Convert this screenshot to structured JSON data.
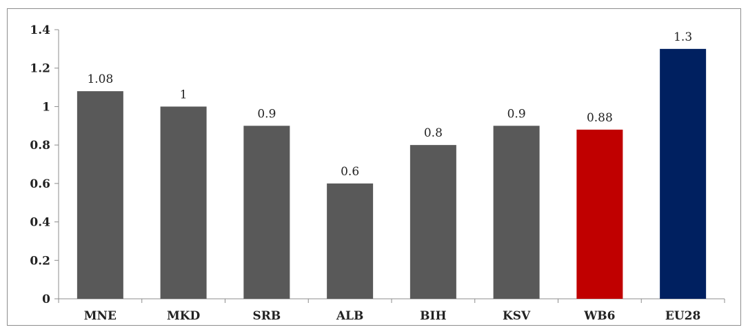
{
  "chart_data": {
    "type": "bar",
    "title": "",
    "xlabel": "",
    "ylabel": "",
    "categories": [
      "MNE",
      "MKD",
      "SRB",
      "ALB",
      "BIH",
      "KSV",
      "WB6",
      "EU28"
    ],
    "values": [
      1.08,
      1,
      0.9,
      0.6,
      0.8,
      0.9,
      0.88,
      1.3
    ],
    "value_labels": [
      "1.08",
      "1",
      "0.9",
      "0.6",
      "0.8",
      "0.9",
      "0.88",
      "1.3"
    ],
    "bar_colors": [
      "#595959",
      "#595959",
      "#595959",
      "#595959",
      "#595959",
      "#595959",
      "#c00000",
      "#002060"
    ],
    "ylim": [
      0,
      1.4
    ],
    "yticks": [
      0,
      0.2,
      0.4,
      0.6,
      0.8,
      1,
      1.2,
      1.4
    ],
    "ytick_labels": [
      "0",
      "0.2",
      "0.4",
      "0.6",
      "0.8",
      "1",
      "1.2",
      "1.4"
    ],
    "grid": false,
    "legend": "none"
  }
}
